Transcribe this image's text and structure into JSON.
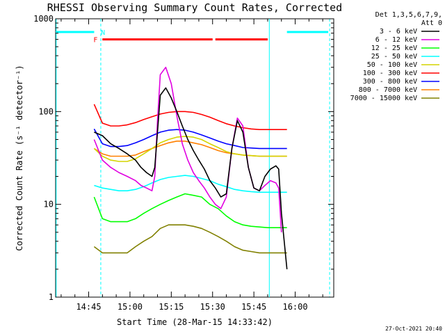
{
  "chart_data": {
    "type": "line",
    "title": "RHESSI Observing Summary Count Rates, Corrected",
    "xlabel": "Start Time (28-Mar-15 14:33:42)",
    "ylabel": "Corrected Count Rate (s⁻¹ detector⁻¹)",
    "yscale": "log",
    "ylim": [
      1,
      1000
    ],
    "xlim_minutes_after_start": [
      0,
      101
    ],
    "x_ticks": [
      {
        "t": 12,
        "label": "14:45"
      },
      {
        "t": 27,
        "label": "15:00"
      },
      {
        "t": 42,
        "label": "15:15"
      },
      {
        "t": 57,
        "label": "15:30"
      },
      {
        "t": 72,
        "label": "15:45"
      },
      {
        "t": 87,
        "label": "16:00"
      }
    ],
    "y_ticks": [
      {
        "v": 1,
        "label": "1"
      },
      {
        "v": 10,
        "label": "10"
      },
      {
        "v": 100,
        "label": "100"
      },
      {
        "v": 1000,
        "label": "1000"
      }
    ],
    "legend_header": [
      "Det 1,3,5,6,7,9,",
      "Att 0"
    ],
    "legend_position": "right",
    "series": [
      {
        "name": "3 - 6 keV",
        "color": "#000000",
        "x": [
          14,
          17,
          20,
          23,
          26,
          29,
          31,
          33,
          35,
          36,
          37,
          38,
          40,
          42,
          44,
          46,
          48,
          50,
          52,
          54,
          56,
          58,
          60,
          62,
          64,
          66,
          68,
          70,
          72,
          74,
          76,
          78,
          80,
          81,
          82,
          84
        ],
        "y": [
          60,
          55,
          45,
          40,
          35,
          30,
          25,
          22,
          20,
          25,
          60,
          150,
          180,
          140,
          100,
          70,
          50,
          38,
          30,
          24,
          18,
          15,
          12,
          13,
          40,
          80,
          60,
          25,
          15,
          14,
          20,
          24,
          26,
          24,
          8,
          2
        ]
      },
      {
        "name": "6 - 12 keV",
        "color": "#e000e0",
        "x": [
          14,
          17,
          20,
          23,
          26,
          29,
          31,
          33,
          35,
          36,
          37,
          38,
          40,
          42,
          44,
          46,
          48,
          50,
          52,
          54,
          56,
          58,
          60,
          62,
          64,
          66,
          68,
          70,
          72,
          74,
          76,
          78,
          80,
          81,
          82
        ],
        "y": [
          50,
          30,
          25,
          22,
          20,
          18,
          16,
          15,
          14,
          20,
          80,
          250,
          300,
          200,
          90,
          45,
          30,
          22,
          18,
          15,
          12,
          10,
          9,
          12,
          40,
          85,
          70,
          25,
          15,
          14,
          16,
          18,
          17,
          15,
          5
        ]
      },
      {
        "name": "12 - 25 keV",
        "color": "#00ff00",
        "x": [
          14,
          17,
          20,
          23,
          26,
          29,
          32,
          35,
          38,
          41,
          44,
          47,
          50,
          53,
          56,
          59,
          62,
          65,
          68,
          71,
          74,
          77,
          80,
          83,
          84
        ],
        "y": [
          12,
          7,
          6.5,
          6.5,
          6.5,
          7,
          8,
          9,
          10,
          11,
          12,
          13,
          12.5,
          12,
          10,
          9,
          7.5,
          6.5,
          6,
          5.8,
          5.7,
          5.6,
          5.6,
          5.6,
          5.6
        ]
      },
      {
        "name": "25 - 50 keV",
        "color": "#00ffff",
        "x": [
          14,
          17,
          20,
          23,
          26,
          29,
          32,
          35,
          38,
          41,
          44,
          47,
          50,
          53,
          56,
          59,
          62,
          65,
          68,
          71,
          74,
          77,
          80,
          83,
          84
        ],
        "y": [
          16,
          15,
          14.5,
          14,
          14,
          14.5,
          15.5,
          17,
          18.5,
          19.5,
          20,
          20.5,
          20,
          19,
          18,
          16.5,
          15.5,
          14.5,
          14,
          13.7,
          13.5,
          13.5,
          13.5,
          13.5,
          13.5
        ]
      },
      {
        "name": "50 - 100 keV",
        "color": "#d4d400",
        "x": [
          14,
          17,
          20,
          23,
          26,
          29,
          32,
          35,
          38,
          41,
          44,
          47,
          50,
          53,
          56,
          59,
          62,
          65,
          68,
          71,
          74,
          77,
          80,
          83,
          84
        ],
        "y": [
          40,
          33,
          30,
          29,
          29,
          31,
          35,
          40,
          46,
          50,
          53,
          54,
          53,
          50,
          45,
          41,
          37,
          35,
          34,
          33.5,
          33,
          33,
          33,
          33,
          33
        ]
      },
      {
        "name": "100 - 300 keV",
        "color": "#ff0000",
        "x": [
          14,
          17,
          20,
          23,
          26,
          29,
          32,
          35,
          38,
          41,
          44,
          47,
          50,
          53,
          56,
          59,
          62,
          65,
          68,
          71,
          74,
          77,
          80,
          83,
          84
        ],
        "y": [
          120,
          75,
          70,
          70,
          72,
          76,
          82,
          88,
          94,
          98,
          100,
          100,
          98,
          93,
          87,
          80,
          74,
          70,
          67,
          65,
          64,
          64,
          64,
          64,
          64
        ]
      },
      {
        "name": "300 - 800 keV",
        "color": "#0000ff",
        "x": [
          14,
          17,
          20,
          23,
          26,
          29,
          32,
          35,
          38,
          41,
          44,
          47,
          50,
          53,
          56,
          59,
          62,
          65,
          68,
          71,
          74,
          77,
          80,
          83,
          84
        ],
        "y": [
          65,
          45,
          42,
          42,
          43,
          46,
          50,
          55,
          60,
          63,
          64,
          63,
          60,
          56,
          52,
          48,
          45,
          43,
          41,
          40.5,
          40,
          40,
          40,
          40,
          40
        ]
      },
      {
        "name": "800 - 7000 keV",
        "color": "#ff8000",
        "x": [
          14,
          17,
          20,
          23,
          26,
          29,
          32,
          35,
          38,
          41,
          44,
          47,
          50,
          53,
          56,
          59,
          62,
          65,
          68,
          71,
          74,
          77,
          80,
          83,
          84
        ],
        "y": [
          40,
          35,
          33,
          33,
          33,
          34,
          37,
          40,
          43,
          46,
          48,
          48,
          46,
          44,
          41,
          38,
          36,
          35,
          34,
          33.5,
          33,
          33,
          33,
          33,
          33
        ]
      },
      {
        "name": "7000 - 15000 keV",
        "color": "#808000",
        "x": [
          14,
          17,
          20,
          23,
          26,
          29,
          32,
          35,
          38,
          41,
          44,
          47,
          50,
          53,
          56,
          59,
          62,
          65,
          68,
          71,
          74,
          77,
          80,
          83,
          84
        ],
        "y": [
          3.5,
          3,
          3,
          3,
          3,
          3.5,
          4,
          4.5,
          5.5,
          6,
          6,
          6,
          5.8,
          5.5,
          5,
          4.5,
          4,
          3.5,
          3.2,
          3.1,
          3,
          3,
          3,
          3,
          3
        ]
      }
    ],
    "status_bars": [
      {
        "label": "",
        "color": "#00ffff",
        "x_start": 0,
        "x_end": 14,
        "y": 720
      },
      {
        "label": "",
        "color": "#00ffff",
        "x_start": 84,
        "x_end": 99,
        "y": 720
      },
      {
        "label": "",
        "color": "#ff0000",
        "x_start": 17,
        "x_end": 57,
        "y": 600
      },
      {
        "label": "",
        "color": "#ff0000",
        "x_start": 58,
        "x_end": 77,
        "y": 600
      }
    ],
    "markers": [
      {
        "label": "F",
        "color": "#ff0000",
        "t": 14.5,
        "y": 600
      },
      {
        "label": "N",
        "color": "#00ffff",
        "t": 17.2,
        "y": 720
      }
    ],
    "vertical_lines": [
      {
        "t": 0.2,
        "color": "#00ffff",
        "style": "solid"
      },
      {
        "t": 16.4,
        "color": "#00ffff",
        "style": "dashed"
      },
      {
        "t": 77.6,
        "color": "#00ffff",
        "style": "solid"
      },
      {
        "t": 99.5,
        "color": "#00ffff",
        "style": "dashed"
      }
    ],
    "footer": "27-Oct-2021 20:40"
  }
}
